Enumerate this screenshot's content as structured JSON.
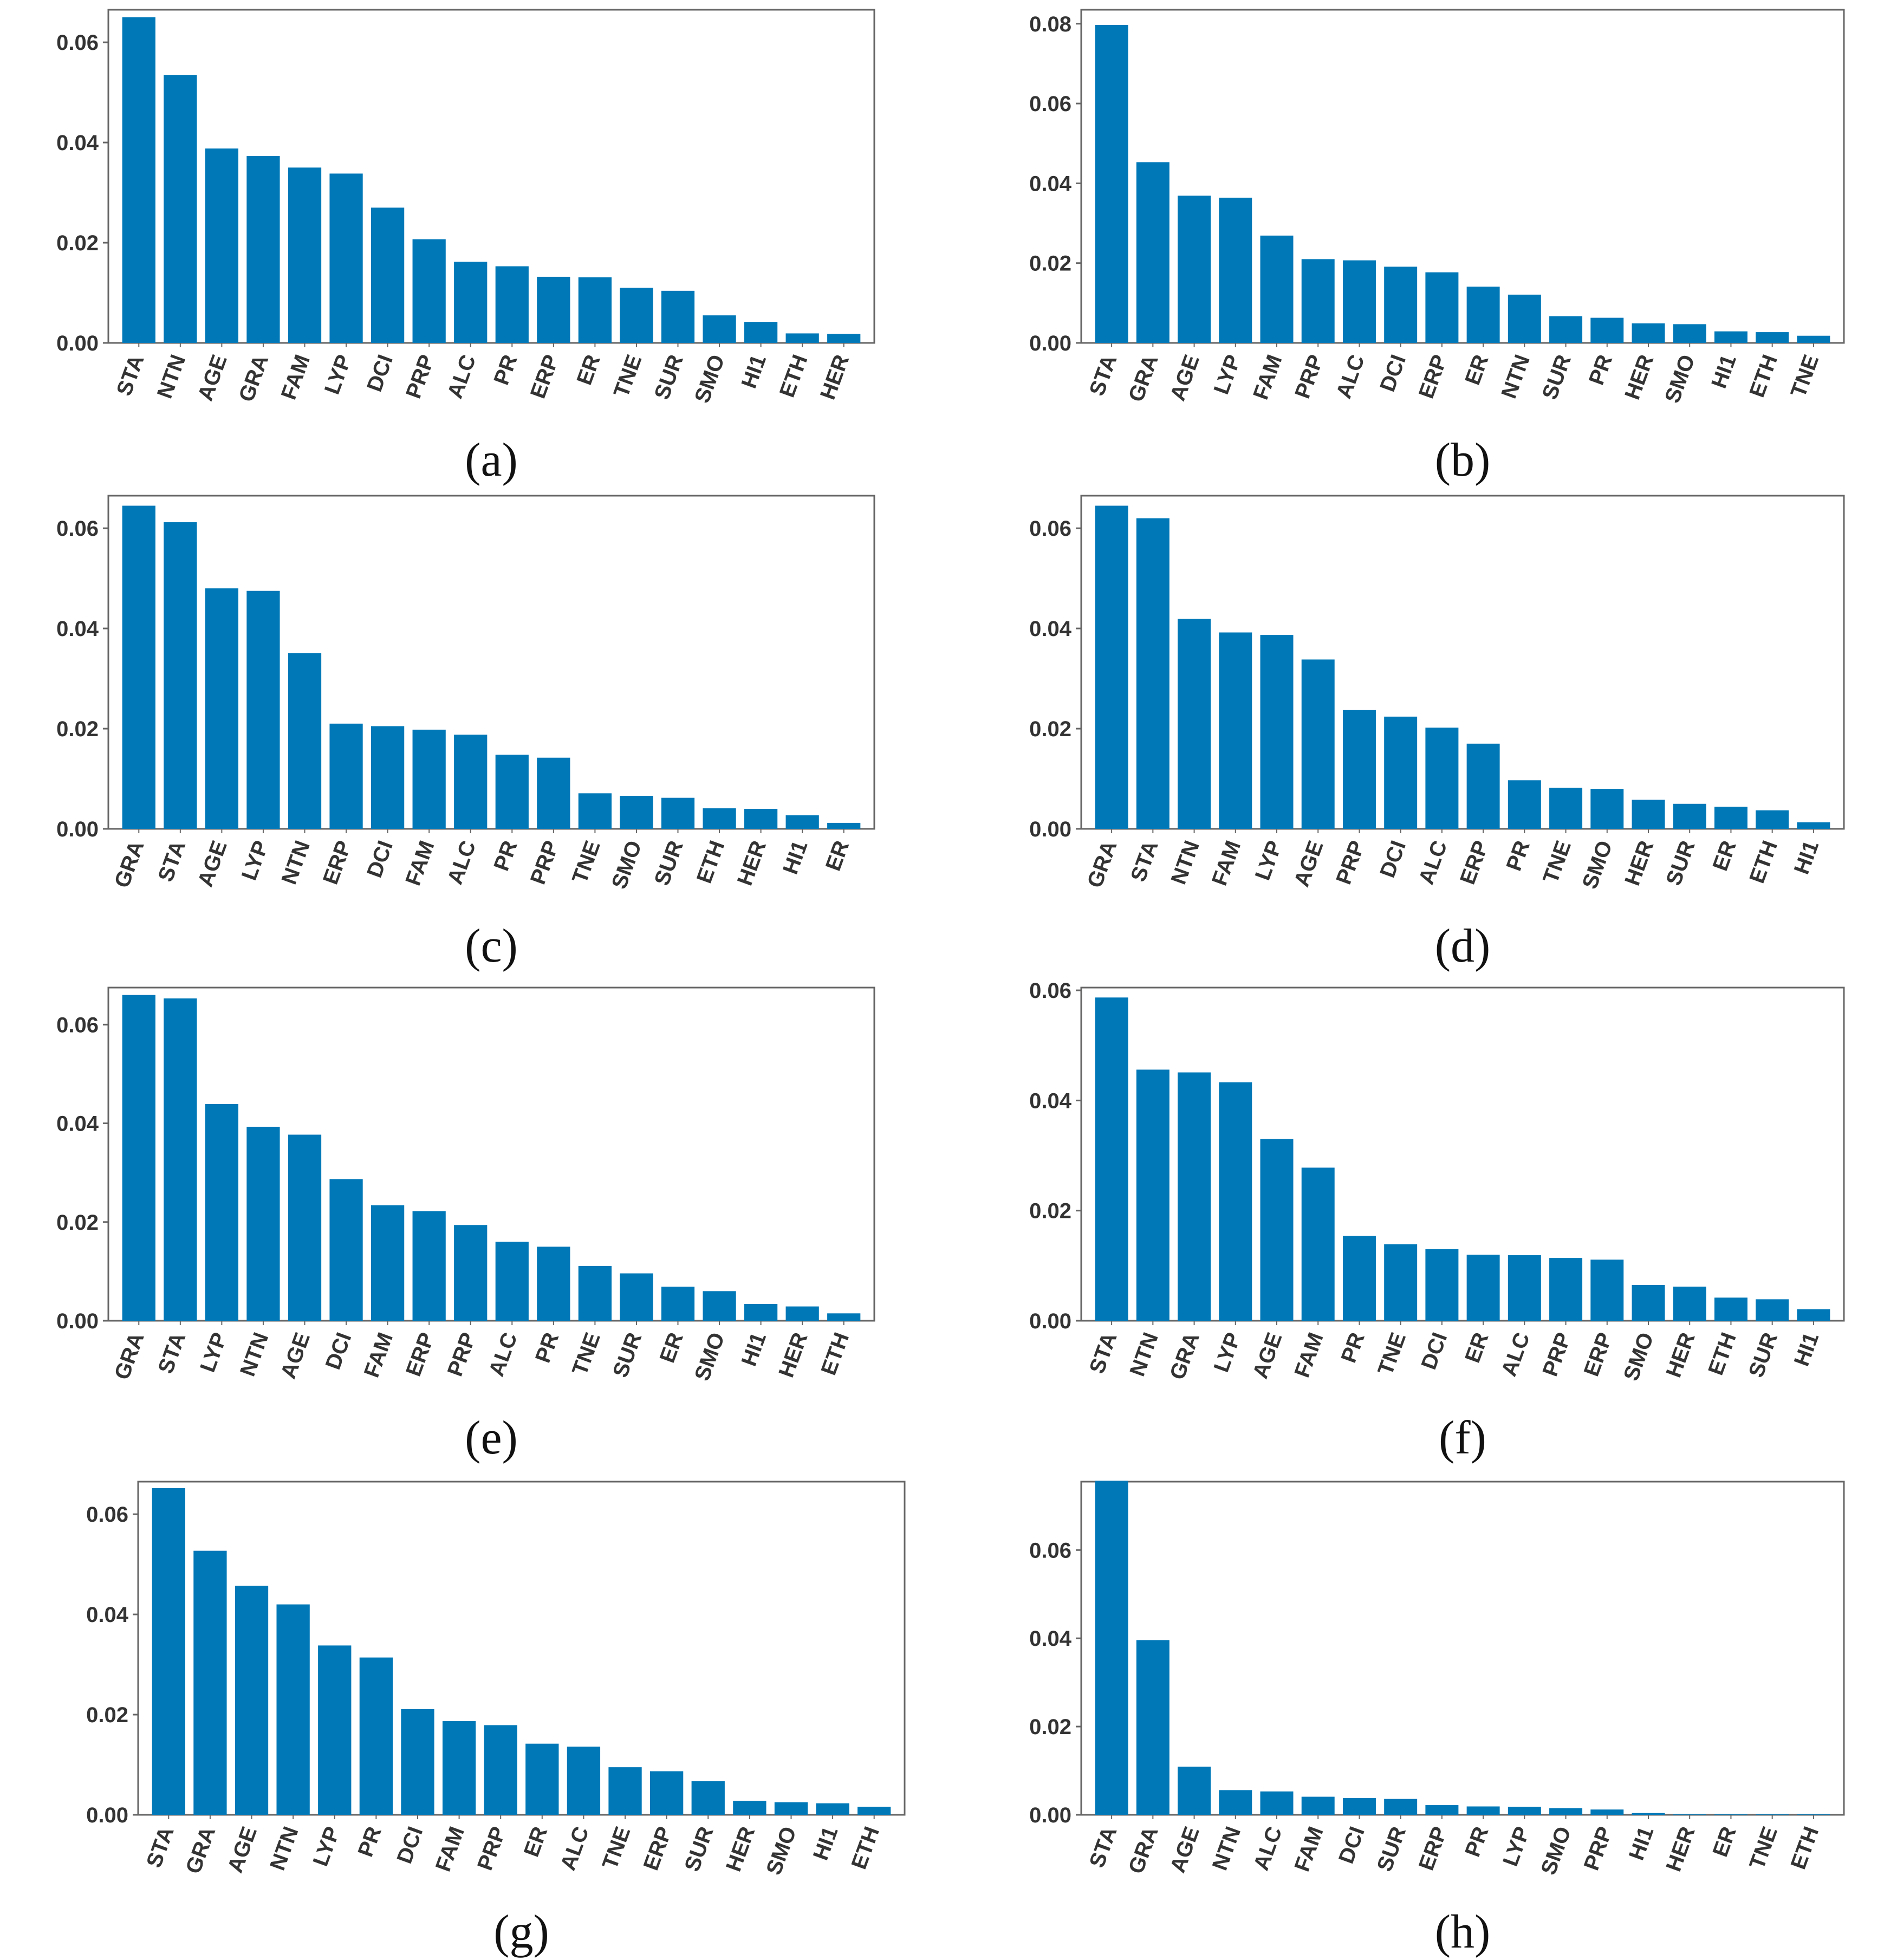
{
  "colors": {
    "bar": "#0078b8",
    "axis": "#666666",
    "text": "#333333",
    "background": "#ffffff"
  },
  "chart_data": [
    {
      "type": "bar",
      "panel_label": "(a)",
      "title": "",
      "xlabel": "",
      "ylabel": "",
      "ylim": [
        0,
        0.0665
      ],
      "yticks": [
        0.0,
        0.02,
        0.04,
        0.06
      ],
      "ytick_labels": [
        "0.00",
        "0.02",
        "0.04",
        "0.06"
      ],
      "categories": [
        "STA",
        "NTN",
        "AGE",
        "GRA",
        "FAM",
        "LYP",
        "DCI",
        "PRP",
        "ALC",
        "PR",
        "ERP",
        "ER",
        "TNE",
        "SUR",
        "SMO",
        "HI1",
        "ETH",
        "HER"
      ],
      "values": [
        0.065,
        0.0535,
        0.0388,
        0.0373,
        0.035,
        0.0338,
        0.027,
        0.0207,
        0.0162,
        0.0153,
        0.0132,
        0.0131,
        0.011,
        0.0104,
        0.0055,
        0.0042,
        0.0019,
        0.0018
      ]
    },
    {
      "type": "bar",
      "panel_label": "(b)",
      "title": "",
      "xlabel": "",
      "ylabel": "",
      "ylim": [
        0,
        0.0835
      ],
      "yticks": [
        0.0,
        0.02,
        0.04,
        0.06,
        0.08
      ],
      "ytick_labels": [
        "0.00",
        "0.02",
        "0.04",
        "0.06",
        "0.08"
      ],
      "categories": [
        "STA",
        "GRA",
        "AGE",
        "LYP",
        "FAM",
        "PRP",
        "ALC",
        "DCI",
        "ERP",
        "ER",
        "NTN",
        "SUR",
        "PR",
        "HER",
        "SMO",
        "HI1",
        "ETH",
        "TNE"
      ],
      "values": [
        0.0797,
        0.0453,
        0.0369,
        0.0364,
        0.0269,
        0.021,
        0.0207,
        0.0191,
        0.0177,
        0.0141,
        0.0121,
        0.0067,
        0.0063,
        0.0049,
        0.0047,
        0.0029,
        0.0027,
        0.0018
      ]
    },
    {
      "type": "bar",
      "panel_label": "(c)",
      "title": "",
      "xlabel": "",
      "ylabel": "",
      "ylim": [
        0,
        0.0665
      ],
      "yticks": [
        0.0,
        0.02,
        0.04,
        0.06
      ],
      "ytick_labels": [
        "0.00",
        "0.02",
        "0.04",
        "0.06"
      ],
      "categories": [
        "GRA",
        "STA",
        "AGE",
        "LYP",
        "NTN",
        "ERP",
        "DCI",
        "FAM",
        "ALC",
        "PR",
        "PRP",
        "TNE",
        "SMO",
        "SUR",
        "ETH",
        "HER",
        "HI1",
        "ER"
      ],
      "values": [
        0.0645,
        0.0612,
        0.048,
        0.0475,
        0.0351,
        0.021,
        0.0205,
        0.0198,
        0.0188,
        0.0148,
        0.0142,
        0.0071,
        0.0066,
        0.0062,
        0.0041,
        0.004,
        0.0027,
        0.0012
      ]
    },
    {
      "type": "bar",
      "panel_label": "(d)",
      "title": "",
      "xlabel": "",
      "ylabel": "",
      "ylim": [
        0,
        0.0665
      ],
      "yticks": [
        0.0,
        0.02,
        0.04,
        0.06
      ],
      "ytick_labels": [
        "0.00",
        "0.02",
        "0.04",
        "0.06"
      ],
      "categories": [
        "GRA",
        "STA",
        "NTN",
        "FAM",
        "LYP",
        "AGE",
        "PRP",
        "DCI",
        "ALC",
        "ERP",
        "PR",
        "TNE",
        "SMO",
        "HER",
        "SUR",
        "ER",
        "ETH",
        "HI1"
      ],
      "values": [
        0.0645,
        0.062,
        0.0419,
        0.0392,
        0.0387,
        0.0338,
        0.0237,
        0.0224,
        0.0202,
        0.017,
        0.0097,
        0.0082,
        0.008,
        0.0058,
        0.005,
        0.0044,
        0.0037,
        0.0013
      ]
    },
    {
      "type": "bar",
      "panel_label": "(e)",
      "title": "",
      "xlabel": "",
      "ylabel": "",
      "ylim": [
        0,
        0.0675
      ],
      "yticks": [
        0.0,
        0.02,
        0.04,
        0.06
      ],
      "ytick_labels": [
        "0.00",
        "0.02",
        "0.04",
        "0.06"
      ],
      "categories": [
        "GRA",
        "STA",
        "LYP",
        "NTN",
        "AGE",
        "DCI",
        "FAM",
        "ERP",
        "PRP",
        "ALC",
        "PR",
        "TNE",
        "SUR",
        "ER",
        "SMO",
        "HI1",
        "HER",
        "ETH"
      ],
      "values": [
        0.066,
        0.0653,
        0.0439,
        0.0393,
        0.0377,
        0.0287,
        0.0234,
        0.0222,
        0.0194,
        0.016,
        0.015,
        0.0111,
        0.0096,
        0.0069,
        0.006,
        0.0034,
        0.0029,
        0.0015
      ]
    },
    {
      "type": "bar",
      "panel_label": "(f)",
      "title": "",
      "xlabel": "",
      "ylabel": "",
      "ylim": [
        0,
        0.0605
      ],
      "yticks": [
        0.0,
        0.02,
        0.04,
        0.06
      ],
      "ytick_labels": [
        "0.00",
        "0.02",
        "0.04",
        "0.06"
      ],
      "categories": [
        "STA",
        "NTN",
        "GRA",
        "LYP",
        "AGE",
        "FAM",
        "PR",
        "TNE",
        "DCI",
        "ER",
        "ALC",
        "PRP",
        "ERP",
        "SMO",
        "HER",
        "ETH",
        "SUR",
        "HI1"
      ],
      "values": [
        0.0587,
        0.0456,
        0.0451,
        0.0433,
        0.033,
        0.0278,
        0.0154,
        0.0139,
        0.013,
        0.012,
        0.0119,
        0.0114,
        0.0111,
        0.0065,
        0.0062,
        0.0042,
        0.0039,
        0.0021
      ]
    },
    {
      "type": "bar",
      "panel_label": "(g)",
      "title": "",
      "xlabel": "",
      "ylabel": "",
      "ylim": [
        0,
        0.0665
      ],
      "yticks": [
        0.0,
        0.02,
        0.04,
        0.06
      ],
      "ytick_labels": [
        "0.00",
        "0.02",
        "0.04",
        "0.06"
      ],
      "categories": [
        "STA",
        "GRA",
        "AGE",
        "NTN",
        "LYP",
        "PR",
        "DCI",
        "FAM",
        "PRP",
        "ER",
        "ALC",
        "TNE",
        "ERP",
        "SUR",
        "HER",
        "SMO",
        "HI1",
        "ETH"
      ],
      "values": [
        0.0652,
        0.0527,
        0.0457,
        0.042,
        0.0338,
        0.0314,
        0.0211,
        0.0187,
        0.0179,
        0.0142,
        0.0136,
        0.0095,
        0.0087,
        0.0067,
        0.0028,
        0.0025,
        0.0023,
        0.0016
      ]
    },
    {
      "type": "bar",
      "panel_label": "(h)",
      "title": "",
      "xlabel": "",
      "ylabel": "",
      "ylim": [
        0,
        0.0755
      ],
      "yticks": [
        0.0,
        0.02,
        0.04,
        0.06
      ],
      "ytick_labels": [
        "0.00",
        "0.02",
        "0.04",
        "0.06"
      ],
      "categories": [
        "STA",
        "GRA",
        "AGE",
        "NTN",
        "ALC",
        "FAM",
        "DCI",
        "SUR",
        "ERP",
        "PR",
        "LYP",
        "SMO",
        "PRP",
        "HI1",
        "HER",
        "ER",
        "TNE",
        "ETH"
      ],
      "values": [
        0.0757,
        0.0396,
        0.0109,
        0.0056,
        0.0053,
        0.0041,
        0.0038,
        0.0036,
        0.0022,
        0.0019,
        0.0018,
        0.0015,
        0.0012,
        0.0004,
        0.0001,
        0.0001,
        0.0001,
        0.0001
      ]
    }
  ]
}
